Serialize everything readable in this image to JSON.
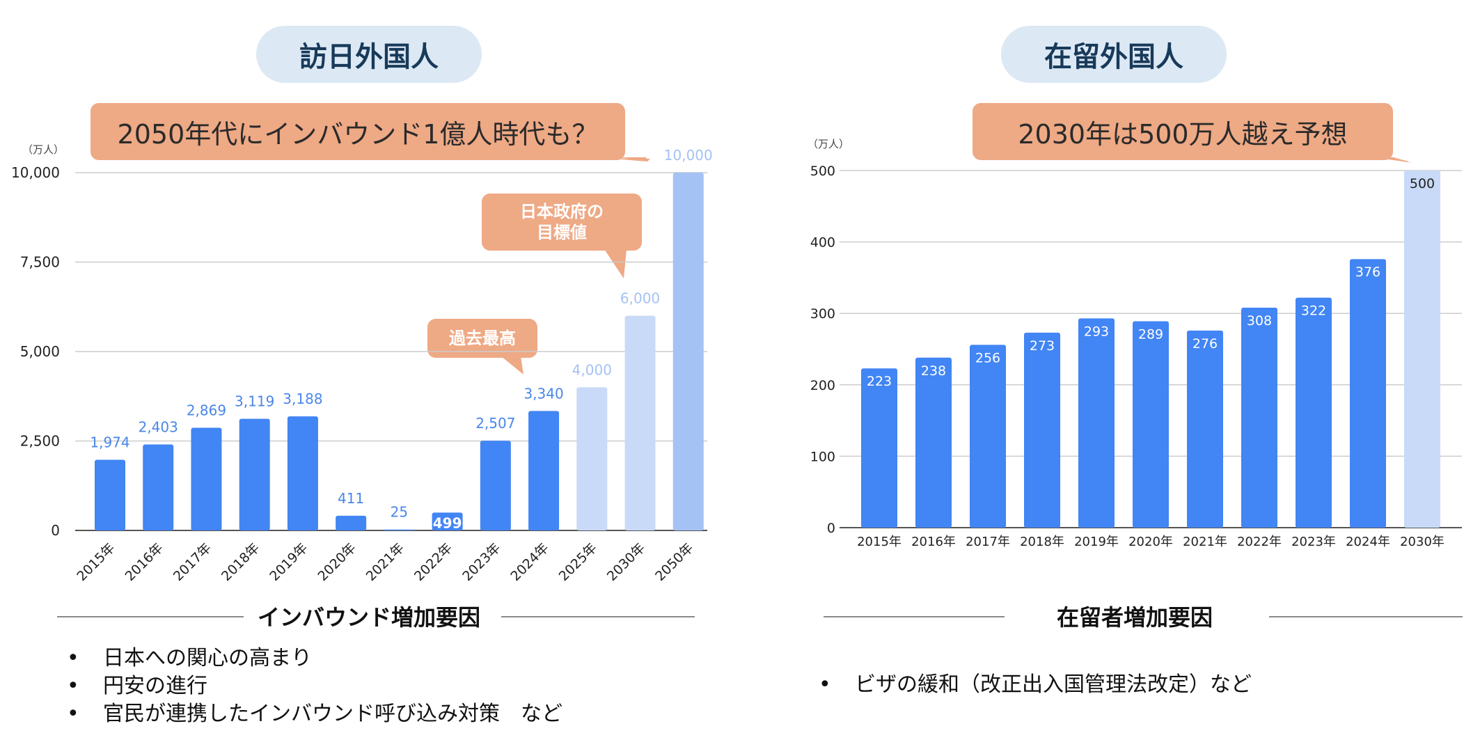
{
  "left": {
    "title": "訪日外国人",
    "callout_main": "2050年代にインバウンド1億人時代も？",
    "callout_goal_line1": "日本政府の",
    "callout_goal_line2": "目標値",
    "callout_record": "過去最高",
    "factors_title": "インバウンド増加要因",
    "factors": [
      "日本への関心の高まり",
      "円安の進行",
      "官民が連携したインバウンド呼び込み対策　など"
    ]
  },
  "right": {
    "title": "在留外国人",
    "callout_main": "2030年は500万人越え予想",
    "factors_title": "在留者増加要因",
    "factors": [
      "ビザの緩和（改正出入国管理法改定）など"
    ]
  },
  "colors": {
    "actual": "#4285f4",
    "forecast_light": "#c9daf8",
    "forecast_mid": "#a4c2f4",
    "label_actual": "#4a86e8"
  },
  "chart_data": [
    {
      "type": "bar",
      "title": "訪日外国人",
      "unit_label": "（万人）",
      "categories": [
        "2015年",
        "2016年",
        "2017年",
        "2018年",
        "2019年",
        "2020年",
        "2021年",
        "2022年",
        "2023年",
        "2024年",
        "2025年",
        "2030年",
        "2050年"
      ],
      "values": [
        1974,
        2403,
        2869,
        3119,
        3188,
        411,
        25,
        499,
        2507,
        3340,
        4000,
        6000,
        10000
      ],
      "value_labels": [
        "1,974",
        "2,403",
        "2,869",
        "3,119",
        "3,188",
        "411",
        "25",
        "499",
        "2,507",
        "3,340",
        "4,000",
        "6,000",
        "10,000"
      ],
      "forecast": [
        false,
        false,
        false,
        false,
        false,
        false,
        false,
        false,
        false,
        false,
        true,
        true,
        true
      ],
      "yticks": [
        "0",
        "2,500",
        "5,000",
        "7,500",
        "10,000"
      ],
      "ylim": [
        0,
        10000
      ]
    },
    {
      "type": "bar",
      "title": "在留外国人",
      "unit_label": "（万人）",
      "categories": [
        "2015年",
        "2016年",
        "2017年",
        "2018年",
        "2019年",
        "2020年",
        "2021年",
        "2022年",
        "2023年",
        "2024年",
        "2030年"
      ],
      "values": [
        223,
        238,
        256,
        273,
        293,
        289,
        276,
        308,
        322,
        376,
        500
      ],
      "value_labels": [
        "223",
        "238",
        "256",
        "273",
        "293",
        "289",
        "276",
        "308",
        "322",
        "376",
        "500"
      ],
      "forecast": [
        false,
        false,
        false,
        false,
        false,
        false,
        false,
        false,
        false,
        false,
        true
      ],
      "yticks": [
        "0",
        "100",
        "200",
        "300",
        "400",
        "500"
      ],
      "ylim": [
        0,
        500
      ]
    }
  ]
}
